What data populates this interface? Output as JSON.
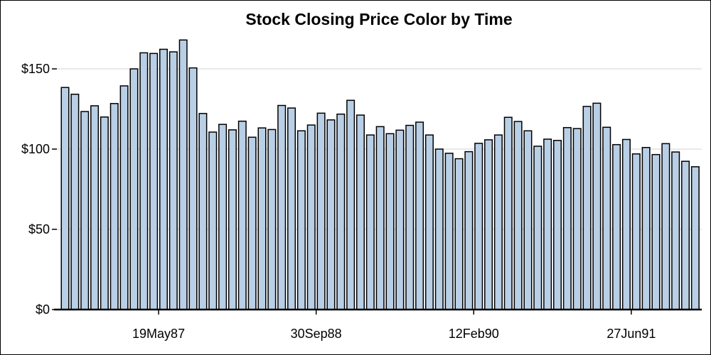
{
  "chart_data": {
    "type": "bar",
    "title": "Stock Closing Price Color by Time",
    "xlabel": "",
    "ylabel": "",
    "ylim": [
      0,
      170
    ],
    "yticks": [
      {
        "value": 0,
        "label": "$0"
      },
      {
        "value": 50,
        "label": "$50"
      },
      {
        "value": 100,
        "label": "$100"
      },
      {
        "value": 150,
        "label": "$150"
      }
    ],
    "xticks": [
      {
        "value": 9.5,
        "label": "19May87"
      },
      {
        "value": 25.5,
        "label": "30Sep88"
      },
      {
        "value": 41.5,
        "label": "12Feb90"
      },
      {
        "value": 57.5,
        "label": "27Jun91"
      }
    ],
    "grid": true,
    "bar_color": "#b9cfe6",
    "bar_edge_color": "#000000",
    "values": [
      138.4,
      134.2,
      123.4,
      127.0,
      120.0,
      128.4,
      139.4,
      150.0,
      160.0,
      159.6,
      162.2,
      160.6,
      168.0,
      150.6,
      122.2,
      110.6,
      115.4,
      112.0,
      117.4,
      107.4,
      113.2,
      112.2,
      127.2,
      125.6,
      111.4,
      115.0,
      122.4,
      118.2,
      121.8,
      130.4,
      121.2,
      108.8,
      114.0,
      109.6,
      111.8,
      114.8,
      116.8,
      108.8,
      100.0,
      97.4,
      94.0,
      98.4,
      103.6,
      105.8,
      108.8,
      119.8,
      117.2,
      111.4,
      101.8,
      106.2,
      105.4,
      113.4,
      112.8,
      126.6,
      128.6,
      113.6,
      102.8,
      106.0,
      97.0,
      101.0,
      96.6,
      103.4,
      98.2,
      92.4,
      89.0
    ]
  }
}
